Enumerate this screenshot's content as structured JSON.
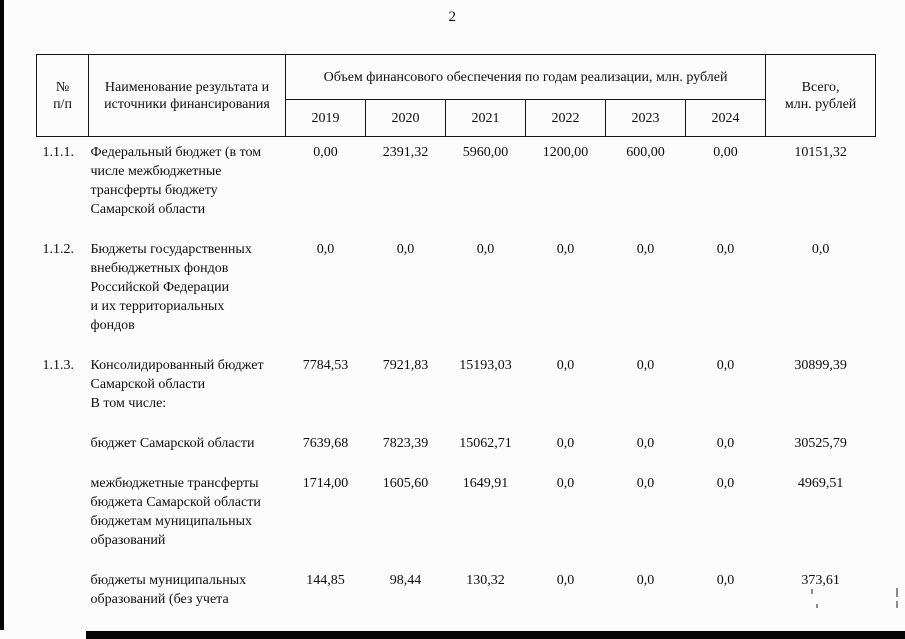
{
  "page": {
    "number": "2"
  },
  "table": {
    "header": {
      "col_num": "№\nп/п",
      "col_name": "Наименование результата и\nисточники финансирования",
      "col_volume": "Объем финансового обеспечения по годам реализации, млн. рублей",
      "years": [
        "2019",
        "2020",
        "2021",
        "2022",
        "2023",
        "2024"
      ],
      "col_total": "Всего,\nмлн. рублей"
    },
    "rows": [
      {
        "num": "1.1.1.",
        "name": "Федеральный бюджет (в том\nчисле межбюджетные\nтрансферты бюджету\nСамарской области",
        "values": [
          "0,00",
          "2391,32",
          "5960,00",
          "1200,00",
          "600,00",
          "0,00"
        ],
        "total": "10151,32"
      },
      {
        "num": "1.1.2.",
        "name": "Бюджеты государственных\nвнебюджетных фондов\nРоссийской Федерации\nи их территориальных\nфондов",
        "values": [
          "0,0",
          "0,0",
          "0,0",
          "0,0",
          "0,0",
          "0,0"
        ],
        "total": "0,0"
      },
      {
        "num": "1.1.3.",
        "name": "Консолидированный бюджет\nСамарской области\nВ том числе:",
        "values": [
          "7784,53",
          "7921,83",
          "15193,03",
          "0,0",
          "0,0",
          "0,0"
        ],
        "total": "30899,39"
      },
      {
        "num": "",
        "name": "бюджет Самарской области",
        "values": [
          "7639,68",
          "7823,39",
          "15062,71",
          "0,0",
          "0,0",
          "0,0"
        ],
        "total": "30525,79"
      },
      {
        "num": "",
        "name": "межбюджетные трансферты\nбюджета Самарской области\nбюджетам муниципальных\nобразований",
        "values": [
          "1714,00",
          "1605,60",
          "1649,91",
          "0,0",
          "0,0",
          "0,0"
        ],
        "total": "4969,51"
      },
      {
        "num": "",
        "name": "бюджеты муниципальных\nобразований (без учета",
        "values": [
          "144,85",
          "98,44",
          "130,32",
          "0,0",
          "0,0",
          "0,0"
        ],
        "total": "373,61"
      }
    ]
  }
}
